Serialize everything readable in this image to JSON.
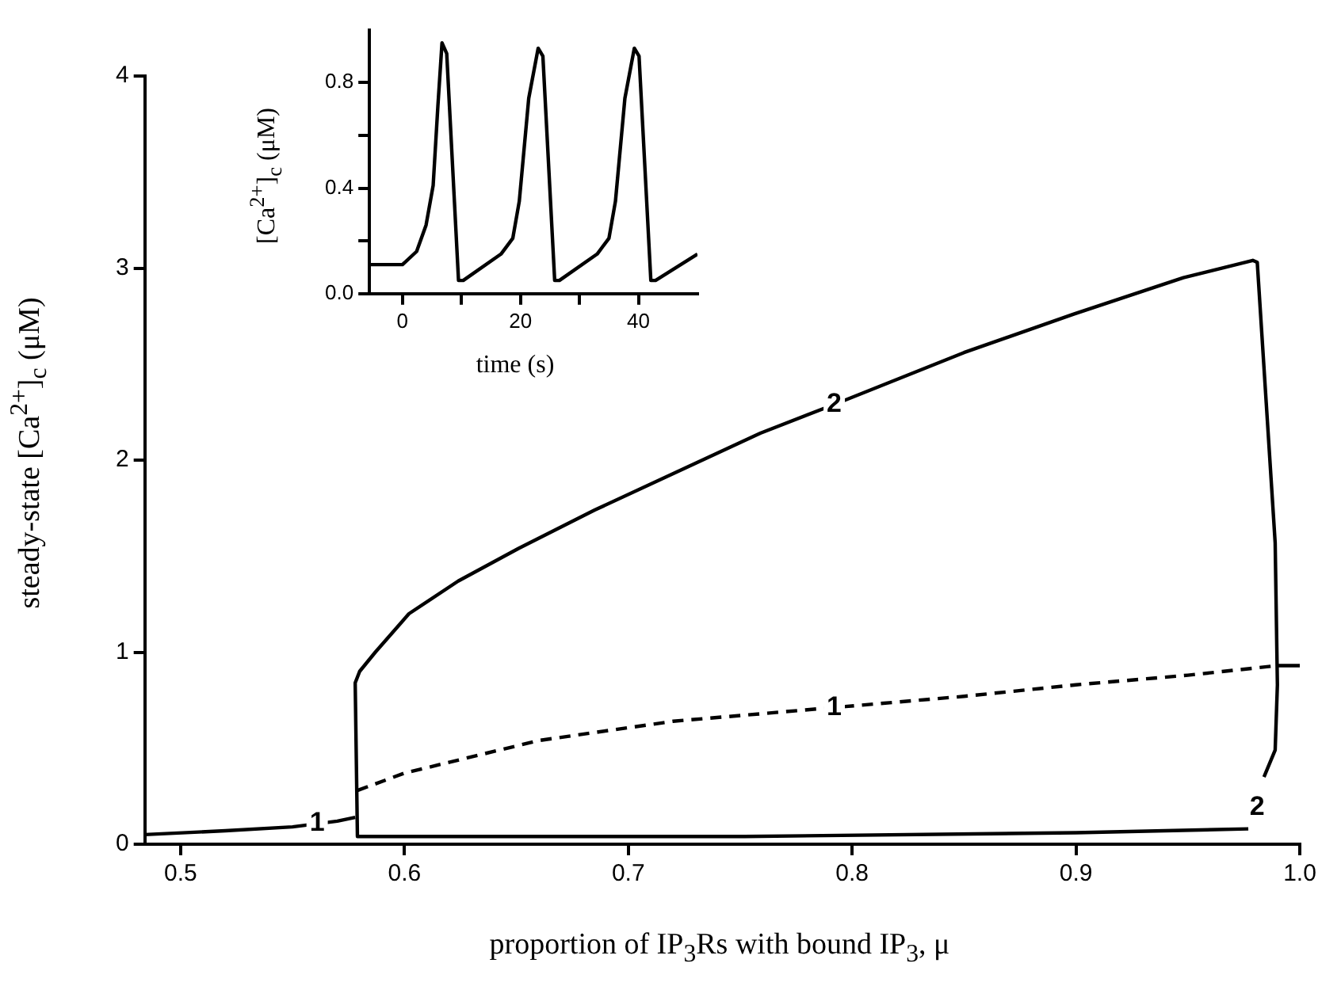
{
  "chart_data": [
    {
      "type": "line",
      "xlabel": "proportion of IP$_{3}$Rs with bound IP$_{3}$, μ",
      "ylabel": "steady-state [Ca$^{2+}$]$_{c}$ (μM)",
      "xlim": [
        0.484,
        1.0
      ],
      "ylim": [
        0,
        4
      ],
      "xticks": [
        0.5,
        0.6,
        0.7,
        0.8,
        0.9,
        {
          "value": 1.0,
          "label": "1.0"
        }
      ],
      "yticks": [
        0,
        1,
        2,
        3,
        4
      ],
      "series": [
        {
          "color": "#000000",
          "line_style": "solid",
          "x": [
            0.484,
            0.52,
            0.55,
            0.57,
            0.578,
            0.8,
            0.99,
            1.0
          ],
          "values": [
            0.05,
            0.07,
            0.09,
            0.12,
            0.14,
            null,
            0.93,
            0.93
          ]
        },
        {
          "color": "#000000",
          "line_style": "dashed",
          "x": [
            0.579,
            0.6,
            0.66,
            0.72,
            0.79,
            0.85,
            0.9,
            0.95,
            0.99
          ],
          "values": [
            0.28,
            0.37,
            0.54,
            0.64,
            0.71,
            0.77,
            0.83,
            0.88,
            0.93
          ]
        },
        {
          "color": "#000000",
          "line_style": "solid",
          "x": [
            0.977,
            0.9,
            0.752,
            0.65,
            0.579,
            0.578,
            0.58,
            0.587,
            0.602,
            0.624,
            0.651,
            0.685,
            0.722,
            0.759,
            0.792,
            0.85,
            0.899,
            0.948,
            0.979,
            0.981,
            0.989,
            0.99,
            0.989,
            0.984
          ],
          "values": [
            0.08,
            0.06,
            0.04,
            0.04,
            0.04,
            0.84,
            0.9,
            1.0,
            1.2,
            1.37,
            1.54,
            1.74,
            1.94,
            2.14,
            2.29,
            2.56,
            2.76,
            2.95,
            3.04,
            3.03,
            1.57,
            0.83,
            0.49,
            0.35
          ]
        }
      ],
      "annotations": [
        {
          "text": "1",
          "x": 0.561,
          "y": 0.11
        },
        {
          "text": "1",
          "x": 0.792,
          "y": 0.71
        },
        {
          "text": "2",
          "x": 0.792,
          "y": 2.29
        },
        {
          "text": "2",
          "x": 0.981,
          "y": 0.19
        }
      ]
    },
    {
      "type": "line",
      "xlabel": "time (s)",
      "ylabel": "[Ca$^{2+}$]$_{c}$ (μM)",
      "xlim": [
        -5.6,
        50
      ],
      "ylim": [
        0,
        1.0
      ],
      "xticks": [
        0,
        {
          "value": 10,
          "label": null
        },
        20,
        {
          "value": 30,
          "label": null
        },
        40
      ],
      "yticks": [
        {
          "value": 0,
          "label": "0.0"
        },
        {
          "value": 0.2,
          "label": null
        },
        {
          "value": 0.4,
          "label": "0.4"
        },
        {
          "value": 0.6,
          "label": null
        },
        {
          "value": 0.8,
          "label": "0.8"
        }
      ],
      "series": [
        {
          "color": "#000000",
          "line_style": "solid",
          "x": [
            -5.6,
            0,
            2.4,
            4,
            5.2,
            6,
            6.7,
            7.5,
            9.5,
            10.3,
            16.7,
            18.7,
            19.8,
            21.4,
            23,
            23.8,
            25.8,
            26.6,
            33,
            35,
            36.1,
            37.7,
            39.3,
            40.1,
            42.1,
            42.9,
            50
          ],
          "values": [
            0.11,
            0.11,
            0.16,
            0.26,
            0.41,
            0.71,
            0.95,
            0.91,
            0.05,
            0.05,
            0.15,
            0.21,
            0.35,
            0.74,
            0.93,
            0.9,
            0.05,
            0.05,
            0.15,
            0.21,
            0.35,
            0.74,
            0.93,
            0.9,
            0.05,
            0.05,
            0.15
          ]
        }
      ]
    }
  ]
}
